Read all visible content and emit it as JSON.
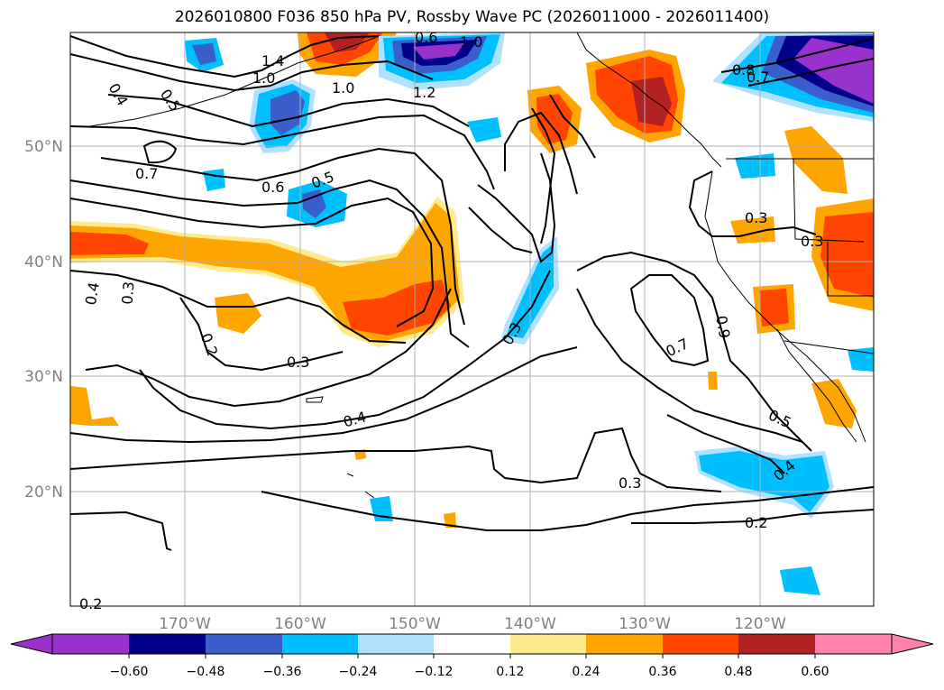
{
  "title": "2026010800 F036 850 hPa PV, Rossby Wave PC (2026011000 - 2026011400)",
  "lat_labels": [
    "50°N",
    "40°N",
    "30°N",
    "20°N"
  ],
  "lon_labels": [
    "170°W",
    "160°W",
    "150°W",
    "140°W",
    "130°W",
    "120°W"
  ],
  "colorbar": {
    "ticks": [
      "−0.60",
      "−0.48",
      "−0.36",
      "−0.24",
      "−0.12",
      "0.12",
      "0.24",
      "0.36",
      "0.48",
      "0.60"
    ],
    "colors": [
      "#9932cc",
      "#00008b",
      "#3a5fcd",
      "#00bfff",
      "#b0e2ff",
      "#ffffff",
      "#ffeb8f",
      "#ffa500",
      "#ff4500",
      "#b22222",
      "#ff82ab"
    ]
  },
  "contour_labels": [
    "1.4",
    "1.0",
    "1.0",
    "1.2",
    "0.6",
    "1.0",
    "0.8",
    "0.7",
    "0.4",
    "0.5",
    "0.7",
    "0.6",
    "0.5",
    "0.3",
    "0.3",
    "0.4",
    "0.3",
    "0.2",
    "0.3",
    "0.3",
    "0.9",
    "0.7",
    "0.4",
    "0.5",
    "0.4",
    "0.3",
    "0.2",
    "0.2"
  ]
}
